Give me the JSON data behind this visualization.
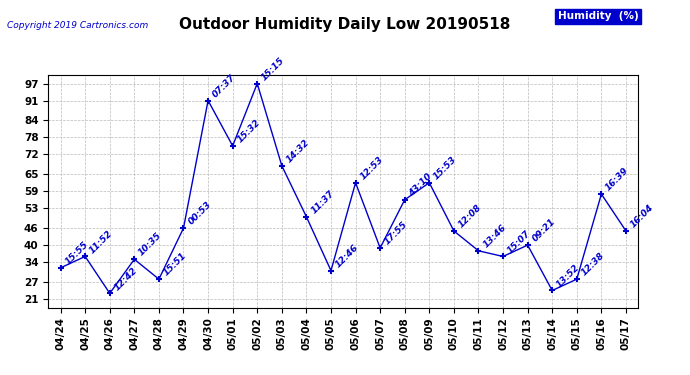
{
  "title": "Outdoor Humidity Daily Low 20190518",
  "copyright": "Copyright 2019 Cartronics.com",
  "legend_label": "Humidity  (%)",
  "x_labels": [
    "04/24",
    "04/25",
    "04/26",
    "04/27",
    "04/28",
    "04/29",
    "04/30",
    "05/01",
    "05/02",
    "05/03",
    "05/04",
    "05/05",
    "05/06",
    "05/07",
    "05/08",
    "05/09",
    "05/10",
    "05/11",
    "05/12",
    "05/13",
    "05/14",
    "05/15",
    "05/16",
    "05/17"
  ],
  "y_values": [
    32,
    36,
    23,
    35,
    28,
    46,
    91,
    75,
    97,
    68,
    50,
    31,
    62,
    39,
    56,
    62,
    45,
    38,
    36,
    40,
    24,
    28,
    58,
    45
  ],
  "point_labels": [
    "15:55",
    "11:52",
    "12:42",
    "10:35",
    "15:51",
    "00:53",
    "07:37",
    "15:32",
    "15:15",
    "14:32",
    "11:37",
    "12:46",
    "12:53",
    "17:55",
    "43:10",
    "15:53",
    "12:08",
    "13:46",
    "15:07",
    "09:21",
    "13:52",
    "12:38",
    "16:39",
    "16:04"
  ],
  "line_color": "#0000cc",
  "bg_color": "#ffffff",
  "grid_color": "#bbbbbb",
  "ylim_min": 18,
  "ylim_max": 100,
  "yticks": [
    21,
    27,
    34,
    40,
    46,
    53,
    59,
    65,
    72,
    78,
    84,
    91,
    97
  ],
  "title_fontsize": 11,
  "label_fontsize": 6.5,
  "tick_fontsize": 7.5,
  "copyright_fontsize": 6.5,
  "legend_fontsize": 7.5
}
